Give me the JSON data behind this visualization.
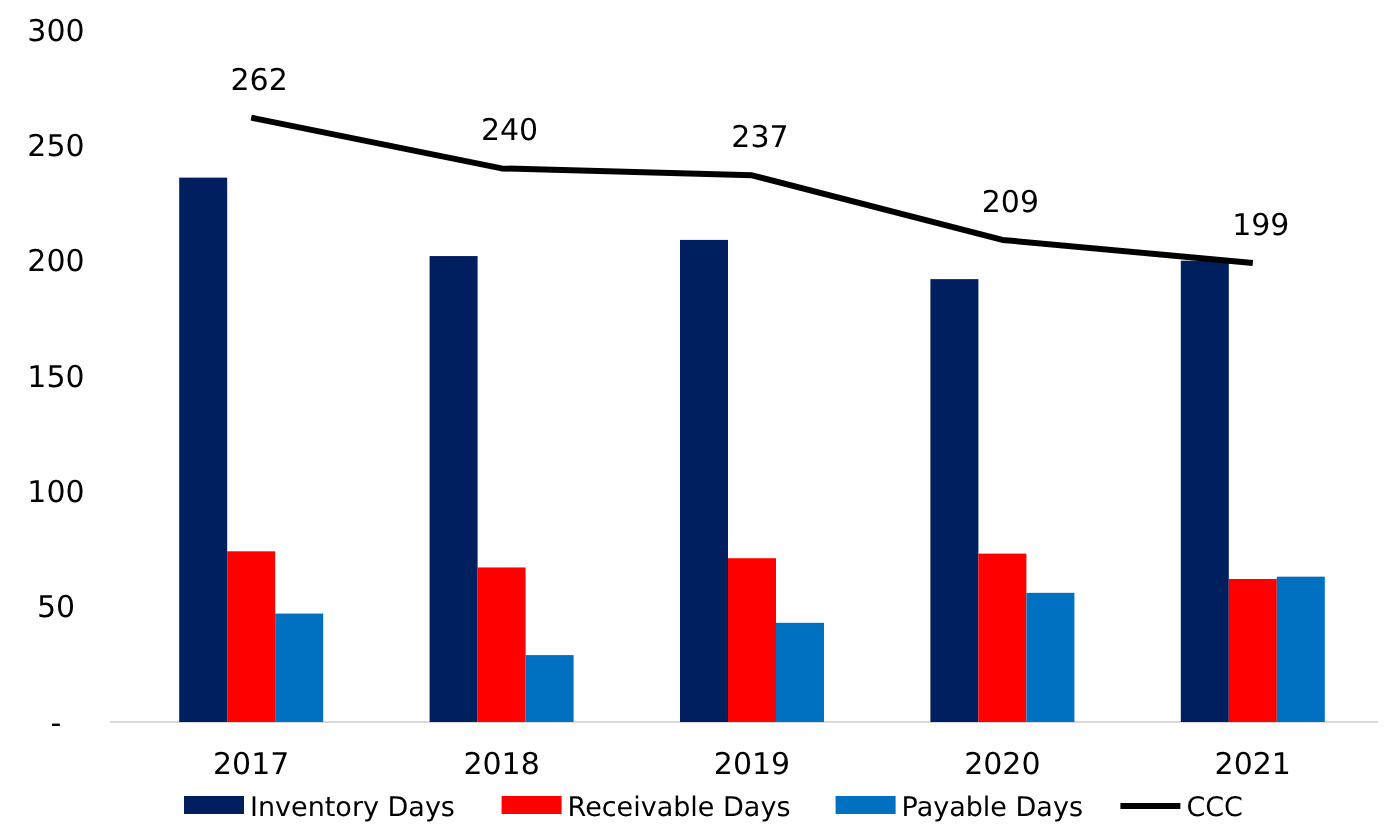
{
  "chart_data": {
    "type": "bar",
    "categories": [
      "2017",
      "2018",
      "2019",
      "2020",
      "2021"
    ],
    "series": [
      {
        "name": "Inventory Days",
        "color": "#001f5f",
        "values": [
          236,
          202,
          209,
          192,
          200
        ]
      },
      {
        "name": "Receivable Days",
        "color": "#ff0000",
        "values": [
          74,
          67,
          71,
          73,
          62
        ]
      },
      {
        "name": "Payable Days",
        "color": "#0070c0",
        "values": [
          47,
          29,
          43,
          56,
          63
        ]
      },
      {
        "name": "CCC",
        "type": "line",
        "color": "#000000",
        "values": [
          262,
          240,
          237,
          209,
          199
        ],
        "value_labels": [
          "262",
          "240",
          "237",
          "209",
          "199"
        ]
      }
    ],
    "ylim": [
      0,
      300
    ],
    "yticks": [
      {
        "value": 0,
        "label": "-"
      },
      50,
      100,
      150,
      200,
      250,
      300
    ],
    "grid": false,
    "legend": "bottom",
    "marker": "none"
  }
}
